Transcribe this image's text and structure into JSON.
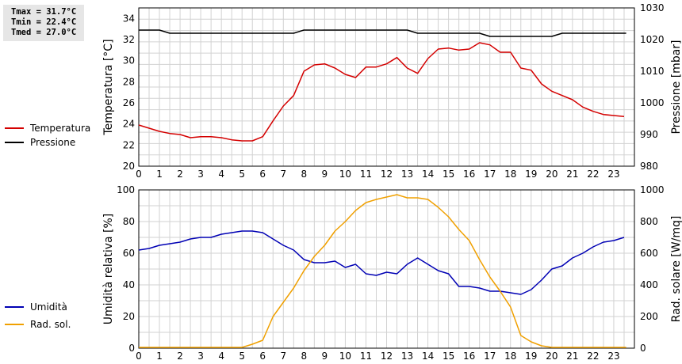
{
  "stats": {
    "tmax": "Tmax = 31.7°C",
    "tmin": "Tmin = 22.4°C",
    "tmed": "Tmed = 27.0°C"
  },
  "colors": {
    "temperature": "#d40000",
    "pressure": "#000000",
    "humidity": "#0000b4",
    "radiation": "#f0a000",
    "grid": "#d2d2d2"
  },
  "chart_data": [
    {
      "type": "line",
      "x_ticks": [
        "0",
        "1",
        "2",
        "3",
        "4",
        "5",
        "6",
        "7",
        "8",
        "9",
        "10",
        "11",
        "12",
        "13",
        "14",
        "15",
        "16",
        "17",
        "18",
        "19",
        "20",
        "21",
        "22",
        "23"
      ],
      "xlim": [
        0,
        24
      ],
      "ylabel": "Temperatura [°C]",
      "ylim": [
        20,
        35
      ],
      "y_ticks": [
        "20",
        "22",
        "24",
        "26",
        "28",
        "30",
        "32",
        "34"
      ],
      "y2label": "Pressione [mbar]",
      "y2lim": [
        980,
        1030
      ],
      "y2_ticks": [
        "980",
        "990",
        "1000",
        "1010",
        "1020",
        "1030"
      ],
      "grid": true,
      "legend_position": "left",
      "series": [
        {
          "name": "Temperatura",
          "axis": "left",
          "x": [
            0,
            0.5,
            1,
            1.5,
            2,
            2.5,
            3,
            3.5,
            4,
            4.5,
            5,
            5.5,
            6,
            6.5,
            7,
            7.5,
            8,
            8.5,
            9,
            9.5,
            10,
            10.5,
            11,
            11.5,
            12,
            12.5,
            13,
            13.5,
            14,
            14.5,
            15,
            15.5,
            16,
            16.5,
            17,
            17.5,
            18,
            18.5,
            19,
            19.5,
            20,
            20.5,
            21,
            21.5,
            22,
            22.5,
            23,
            23.5
          ],
          "values": [
            23.9,
            23.6,
            23.3,
            23.1,
            23.0,
            22.7,
            22.8,
            22.8,
            22.7,
            22.5,
            22.4,
            22.4,
            22.8,
            24.3,
            25.7,
            26.7,
            29.0,
            29.6,
            29.7,
            29.3,
            28.7,
            28.4,
            29.4,
            29.4,
            29.7,
            30.3,
            29.3,
            28.8,
            30.2,
            31.1,
            31.2,
            31.0,
            31.1,
            31.7,
            31.5,
            30.8,
            30.8,
            29.3,
            29.1,
            27.8,
            27.1,
            26.7,
            26.3,
            25.6,
            25.2,
            24.9,
            24.8,
            24.7
          ]
        },
        {
          "name": "Pressione",
          "axis": "right",
          "x": [
            0,
            1,
            1.5,
            7.5,
            8,
            13,
            13.5,
            16.5,
            17,
            20,
            20.5,
            23.6
          ],
          "values": [
            1023,
            1023,
            1022,
            1022,
            1023,
            1023,
            1022,
            1022,
            1021,
            1021,
            1022,
            1022
          ]
        }
      ]
    },
    {
      "type": "line",
      "x_ticks": [
        "0",
        "1",
        "2",
        "3",
        "4",
        "5",
        "6",
        "7",
        "8",
        "9",
        "10",
        "11",
        "12",
        "13",
        "14",
        "15",
        "16",
        "17",
        "18",
        "19",
        "20",
        "21",
        "22",
        "23"
      ],
      "xlim": [
        0,
        24
      ],
      "ylabel": "Umidità relativa [%]",
      "ylim": [
        0,
        100
      ],
      "y_ticks": [
        "0",
        "20",
        "40",
        "60",
        "80",
        "100"
      ],
      "y2label": "Rad. solare [W/mq]",
      "y2lim": [
        0,
        1000
      ],
      "y2_ticks": [
        "0",
        "200",
        "400",
        "600",
        "800",
        "1000"
      ],
      "grid": true,
      "legend_position": "left",
      "series": [
        {
          "name": "Umidità",
          "axis": "left",
          "x": [
            0,
            0.5,
            1,
            1.5,
            2,
            2.5,
            3,
            3.5,
            4,
            4.5,
            5,
            5.5,
            6,
            6.5,
            7,
            7.5,
            8,
            8.5,
            9,
            9.5,
            10,
            10.5,
            11,
            11.5,
            12,
            12.5,
            13,
            13.5,
            14,
            14.5,
            15,
            15.5,
            16,
            16.5,
            17,
            17.5,
            18,
            18.5,
            19,
            19.5,
            20,
            20.5,
            21,
            21.5,
            22,
            22.5,
            23,
            23.5
          ],
          "values": [
            62,
            63,
            65,
            66,
            67,
            69,
            70,
            70,
            72,
            73,
            74,
            74,
            73,
            69,
            65,
            62,
            56,
            54,
            54,
            55,
            51,
            53,
            47,
            46,
            48,
            47,
            53,
            57,
            53,
            49,
            47,
            39,
            39,
            38,
            36,
            36,
            35,
            34,
            37,
            43,
            50,
            52,
            57,
            60,
            64,
            67,
            68,
            70
          ]
        },
        {
          "name": "Rad. sol.",
          "axis": "right",
          "x": [
            0,
            5,
            5.5,
            6,
            6.5,
            7,
            7.5,
            8,
            8.5,
            9,
            9.5,
            10,
            10.5,
            11,
            11.5,
            12,
            12.5,
            13,
            13.5,
            14,
            14.5,
            15,
            15.5,
            16,
            16.5,
            17,
            17.5,
            18,
            18.5,
            19,
            19.5,
            20,
            23.6
          ],
          "values": [
            5,
            5,
            25,
            50,
            200,
            290,
            380,
            490,
            580,
            650,
            740,
            800,
            870,
            920,
            940,
            955,
            970,
            950,
            950,
            940,
            890,
            830,
            750,
            680,
            560,
            450,
            360,
            260,
            80,
            40,
            15,
            5,
            5
          ]
        }
      ]
    }
  ]
}
